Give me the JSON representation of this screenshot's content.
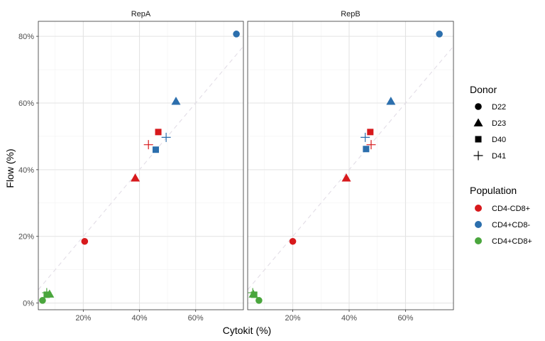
{
  "chart_data": {
    "type": "scatter",
    "xlabel": "Cytokit (%)",
    "ylabel": "Flow (%)",
    "xlim": [
      0.04,
      0.77
    ],
    "ylim": [
      -0.02,
      0.845
    ],
    "x_ticks": [
      {
        "value": 0.2,
        "label": "20%"
      },
      {
        "value": 0.4,
        "label": "40%"
      },
      {
        "value": 0.6,
        "label": "60%"
      }
    ],
    "y_ticks": [
      {
        "value": 0.0,
        "label": "0%"
      },
      {
        "value": 0.2,
        "label": "20%"
      },
      {
        "value": 0.4,
        "label": "40%"
      },
      {
        "value": 0.6,
        "label": "60%"
      },
      {
        "value": 0.8,
        "label": "80%"
      }
    ],
    "grid": true,
    "reference_line": {
      "style": "dashed",
      "slope": 1,
      "intercept": 0
    },
    "panels": [
      {
        "name": "RepA",
        "points": [
          {
            "donor": "D22",
            "population": "CD4+CD8-",
            "x": 0.745,
            "y": 0.807
          },
          {
            "donor": "D23",
            "population": "CD4+CD8-",
            "x": 0.53,
            "y": 0.605
          },
          {
            "donor": "D40",
            "population": "CD4+CD8-",
            "x": 0.458,
            "y": 0.46
          },
          {
            "donor": "D41",
            "population": "CD4+CD8-",
            "x": 0.495,
            "y": 0.497
          },
          {
            "donor": "D22",
            "population": "CD4-CD8+",
            "x": 0.205,
            "y": 0.185
          },
          {
            "donor": "D23",
            "population": "CD4-CD8+",
            "x": 0.385,
            "y": 0.375
          },
          {
            "donor": "D40",
            "population": "CD4-CD8+",
            "x": 0.467,
            "y": 0.513
          },
          {
            "donor": "D41",
            "population": "CD4-CD8+",
            "x": 0.432,
            "y": 0.475
          },
          {
            "donor": "D22",
            "population": "CD4+CD8+",
            "x": 0.055,
            "y": 0.008
          },
          {
            "donor": "D23",
            "population": "CD4+CD8+",
            "x": 0.08,
            "y": 0.027
          },
          {
            "donor": "D40",
            "population": "CD4+CD8+",
            "x": 0.07,
            "y": 0.025
          },
          {
            "donor": "D41",
            "population": "CD4+CD8+",
            "x": 0.07,
            "y": 0.031
          }
        ]
      },
      {
        "name": "RepB",
        "points": [
          {
            "donor": "D22",
            "population": "CD4+CD8-",
            "x": 0.72,
            "y": 0.807
          },
          {
            "donor": "D23",
            "population": "CD4+CD8-",
            "x": 0.548,
            "y": 0.605
          },
          {
            "donor": "D40",
            "population": "CD4+CD8-",
            "x": 0.46,
            "y": 0.462
          },
          {
            "donor": "D41",
            "population": "CD4+CD8-",
            "x": 0.457,
            "y": 0.497
          },
          {
            "donor": "D22",
            "population": "CD4-CD8+",
            "x": 0.2,
            "y": 0.185
          },
          {
            "donor": "D23",
            "population": "CD4-CD8+",
            "x": 0.39,
            "y": 0.375
          },
          {
            "donor": "D40",
            "population": "CD4-CD8+",
            "x": 0.475,
            "y": 0.513
          },
          {
            "donor": "D41",
            "population": "CD4-CD8+",
            "x": 0.478,
            "y": 0.475
          },
          {
            "donor": "D22",
            "population": "CD4+CD8+",
            "x": 0.08,
            "y": 0.008
          },
          {
            "donor": "D23",
            "population": "CD4+CD8+",
            "x": 0.06,
            "y": 0.027
          },
          {
            "donor": "D40",
            "population": "CD4+CD8+",
            "x": 0.063,
            "y": 0.025
          },
          {
            "donor": "D41",
            "population": "CD4+CD8+",
            "x": 0.058,
            "y": 0.031
          }
        ]
      }
    ],
    "legend_placement": "right",
    "legends": {
      "donor": {
        "title": "Donor",
        "items": [
          {
            "label": "D22",
            "shape": "circle"
          },
          {
            "label": "D23",
            "shape": "triangle"
          },
          {
            "label": "D40",
            "shape": "square"
          },
          {
            "label": "D41",
            "shape": "plus"
          }
        ]
      },
      "population": {
        "title": "Population",
        "items": [
          {
            "label": "CD4-CD8+",
            "color": "#d7191c"
          },
          {
            "label": "CD4+CD8-",
            "color": "#2c6fad"
          },
          {
            "label": "CD4+CD8+",
            "color": "#4aa63d"
          }
        ]
      }
    }
  }
}
